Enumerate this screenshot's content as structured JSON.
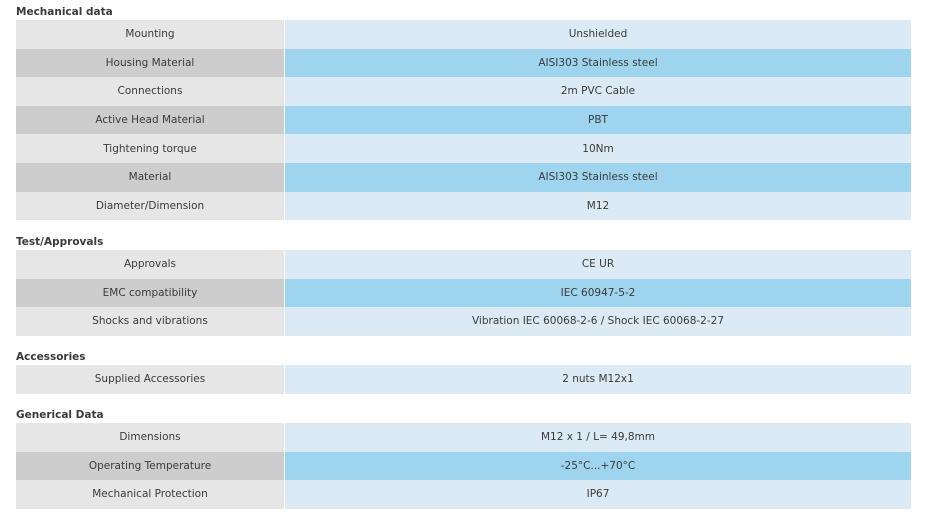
{
  "sections": [
    {
      "title": "Mechanical data",
      "rows": [
        {
          "label": "Mounting",
          "value": "Unshielded"
        },
        {
          "label": "Housing Material",
          "value": "AISI303 Stainless steel"
        },
        {
          "label": "Connections",
          "value": "2m PVC Cable"
        },
        {
          "label": "Active Head Material",
          "value": "PBT"
        },
        {
          "label": "Tightening torque",
          "value": "10Nm"
        },
        {
          "label": "Material",
          "value": "AISI303 Stainless steel"
        },
        {
          "label": "Diameter/Dimension",
          "value": "M12"
        }
      ]
    },
    {
      "title": "Test/Approvals",
      "rows": [
        {
          "label": "Approvals",
          "value": "CE UR"
        },
        {
          "label": "EMC compatibility",
          "value": "IEC 60947-5-2"
        },
        {
          "label": "Shocks and vibrations",
          "value": "Vibration IEC 60068-2-6 / Shock IEC 60068-2-27"
        }
      ]
    },
    {
      "title": "Accessories",
      "rows": [
        {
          "label": "Supplied Accessories",
          "value": "2 nuts M12x1"
        }
      ]
    },
    {
      "title": "Generical Data",
      "rows": [
        {
          "label": "Dimensions",
          "value": "M12 x 1 / L= 49,8mm"
        },
        {
          "label": "Operating Temperature",
          "value": "-25°C...+70°C"
        },
        {
          "label": "Mechanical Protection",
          "value": "IP67"
        }
      ]
    }
  ],
  "colors": {
    "label_light": "#e6e6e6",
    "label_dark": "#cdcdcd",
    "value_light": "#dbeaf5",
    "value_dark": "#9fd4ee",
    "text": "#3a3a3a"
  }
}
